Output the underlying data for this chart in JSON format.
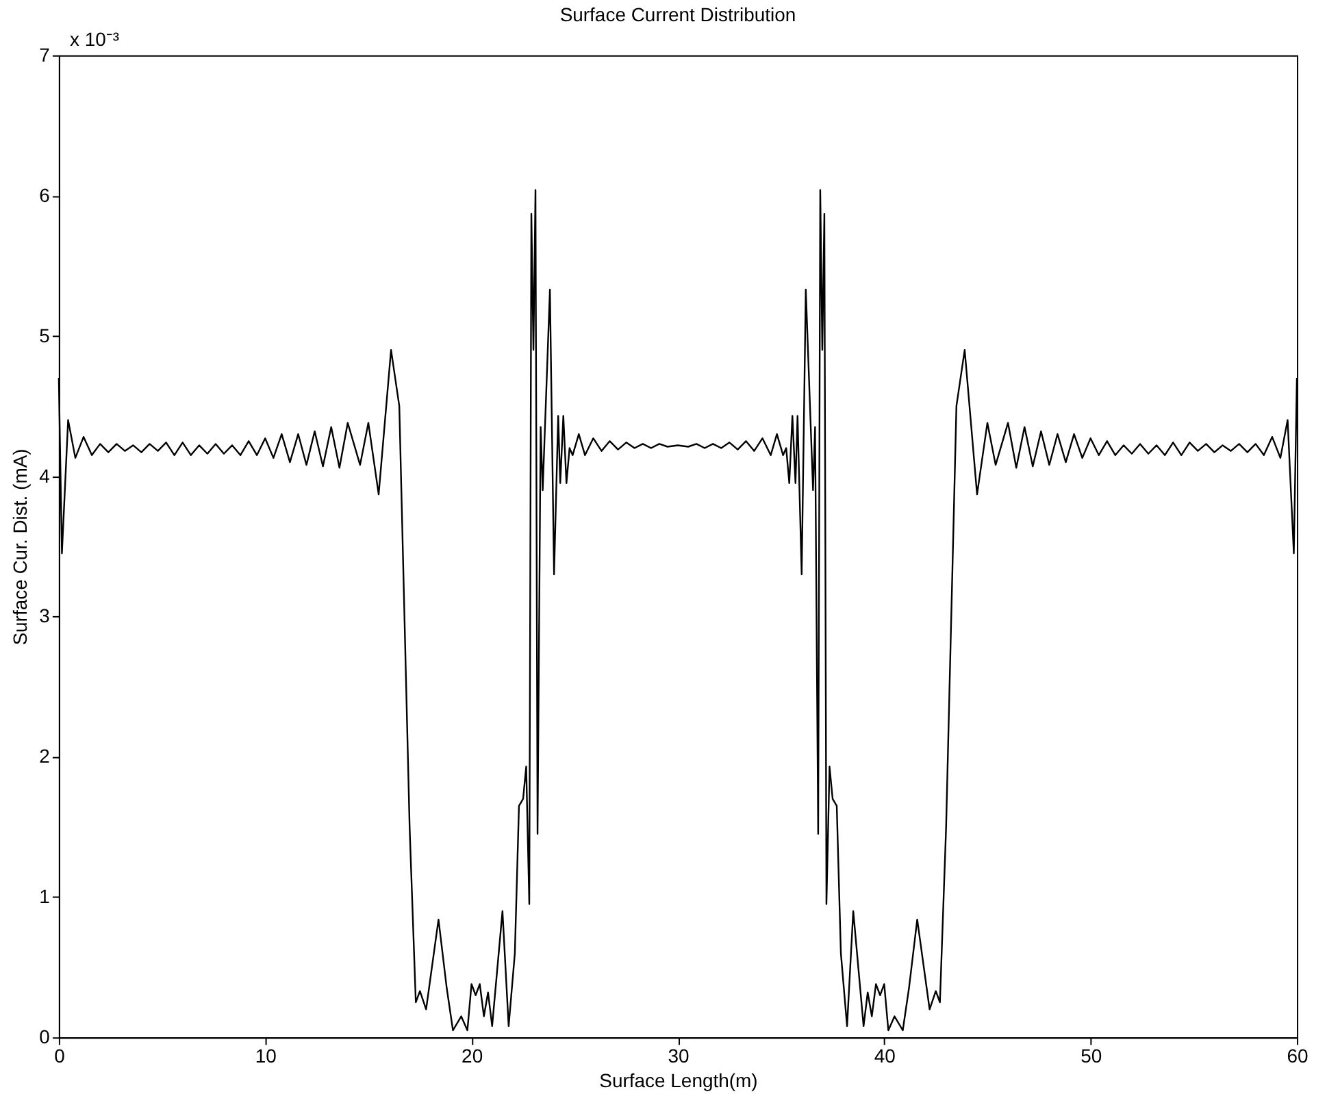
{
  "chart_data": {
    "type": "line",
    "title": "Surface Current Distribution",
    "xlabel": "Surface Length(m)",
    "ylabel": "Surface Cur. Dist. (mA)",
    "annotations": [
      "x 10⁻³"
    ],
    "xlim": [
      0,
      60
    ],
    "xticks": [
      0,
      10,
      20,
      30,
      40,
      50,
      60
    ],
    "ylim": [
      0,
      7
    ],
    "yticks": [
      0,
      1,
      2,
      3,
      4,
      5,
      6,
      7
    ],
    "grid": false,
    "legend": false,
    "line_style": "solid",
    "series": [
      {
        "color": "#000000",
        "x": [
          0,
          0.15,
          0.45,
          0.8,
          1.2,
          1.6,
          2.0,
          2.4,
          2.8,
          3.2,
          3.6,
          4.0,
          4.4,
          4.8,
          5.2,
          5.6,
          6.0,
          6.4,
          6.8,
          7.2,
          7.6,
          8.0,
          8.4,
          8.8,
          9.2,
          9.6,
          10.0,
          10.4,
          10.8,
          11.2,
          11.6,
          12.0,
          12.4,
          12.8,
          13.2,
          13.6,
          14.0,
          14.6,
          15.0,
          15.5,
          16.1,
          16.5,
          17.0,
          17.3,
          17.5,
          17.8,
          18.4,
          18.8,
          19.1,
          19.5,
          19.8,
          20.0,
          20.2,
          20.4,
          20.6,
          20.8,
          21.0,
          21.5,
          21.8,
          22.1,
          22.3,
          22.5,
          22.65,
          22.8,
          22.9,
          23.0,
          23.1,
          23.2,
          23.35,
          23.45,
          23.8,
          24.0,
          24.2,
          24.3,
          24.45,
          24.6,
          24.75,
          24.9,
          25.2,
          25.5,
          25.9,
          26.3,
          26.7,
          27.1,
          27.5,
          27.9,
          28.3,
          28.7,
          29.1,
          29.5,
          30.0,
          30.5,
          30.9,
          31.3,
          31.7,
          32.1,
          32.5,
          32.9,
          33.3,
          33.7,
          34.1,
          34.5,
          34.8,
          35.1,
          35.25,
          35.4,
          35.55,
          35.7,
          35.8,
          36.0,
          36.2,
          36.55,
          36.65,
          36.8,
          36.9,
          37.0,
          37.1,
          37.2,
          37.35,
          37.5,
          37.7,
          37.9,
          38.2,
          38.5,
          39.0,
          39.2,
          39.4,
          39.6,
          39.8,
          40.0,
          40.2,
          40.5,
          40.9,
          41.2,
          41.6,
          42.2,
          42.5,
          42.7,
          43.0,
          43.5,
          43.9,
          44.5,
          45.0,
          45.4,
          46.0,
          46.4,
          46.8,
          47.2,
          47.6,
          48.0,
          48.4,
          48.8,
          49.2,
          49.6,
          50.0,
          50.4,
          50.8,
          51.2,
          51.6,
          52.0,
          52.4,
          52.8,
          53.2,
          53.6,
          54.0,
          54.4,
          54.8,
          55.2,
          55.6,
          56.0,
          56.4,
          56.8,
          57.2,
          57.6,
          58.0,
          58.4,
          58.8,
          59.2,
          59.55,
          59.85,
          60
        ],
        "values": [
          4.7,
          3.45,
          4.4,
          4.13,
          4.28,
          4.15,
          4.23,
          4.17,
          4.23,
          4.18,
          4.22,
          4.17,
          4.23,
          4.18,
          4.24,
          4.15,
          4.24,
          4.15,
          4.22,
          4.16,
          4.23,
          4.16,
          4.22,
          4.15,
          4.25,
          4.15,
          4.27,
          4.13,
          4.3,
          4.1,
          4.3,
          4.08,
          4.32,
          4.07,
          4.35,
          4.06,
          4.38,
          4.08,
          4.38,
          3.87,
          4.9,
          4.5,
          1.5,
          0.25,
          0.33,
          0.2,
          0.84,
          0.35,
          0.05,
          0.15,
          0.05,
          0.38,
          0.3,
          0.38,
          0.15,
          0.32,
          0.08,
          0.9,
          0.08,
          0.6,
          1.65,
          1.7,
          1.93,
          0.95,
          5.87,
          4.9,
          6.04,
          1.45,
          4.35,
          3.9,
          5.33,
          3.3,
          4.43,
          3.95,
          4.43,
          3.95,
          4.2,
          4.15,
          4.3,
          4.15,
          4.27,
          4.18,
          4.25,
          4.19,
          4.24,
          4.2,
          4.23,
          4.2,
          4.23,
          4.21,
          4.22,
          4.21,
          4.23,
          4.2,
          4.23,
          4.2,
          4.24,
          4.19,
          4.25,
          4.18,
          4.27,
          4.15,
          4.3,
          4.15,
          4.2,
          3.95,
          4.43,
          3.95,
          4.43,
          3.3,
          5.33,
          3.9,
          4.35,
          1.45,
          6.04,
          4.9,
          5.87,
          0.95,
          1.93,
          1.7,
          1.65,
          0.6,
          0.08,
          0.9,
          0.08,
          0.32,
          0.15,
          0.38,
          0.3,
          0.38,
          0.05,
          0.15,
          0.05,
          0.35,
          0.84,
          0.2,
          0.33,
          0.25,
          1.5,
          4.5,
          4.9,
          3.87,
          4.38,
          4.08,
          4.38,
          4.06,
          4.35,
          4.07,
          4.32,
          4.08,
          4.3,
          4.1,
          4.3,
          4.13,
          4.27,
          4.15,
          4.25,
          4.15,
          4.22,
          4.16,
          4.23,
          4.16,
          4.22,
          4.15,
          4.24,
          4.15,
          4.24,
          4.18,
          4.23,
          4.17,
          4.22,
          4.18,
          4.23,
          4.17,
          4.23,
          4.15,
          4.28,
          4.13,
          4.4,
          3.45,
          4.7
        ]
      }
    ]
  }
}
